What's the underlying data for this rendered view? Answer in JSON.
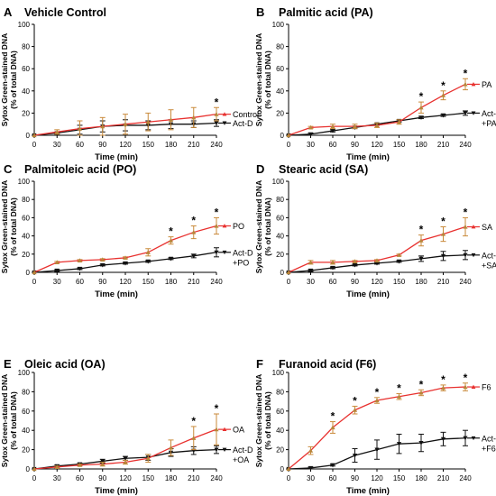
{
  "colors": {
    "fatty_acid_series": "#e8312f",
    "fatty_acid_errorbar": "#c98a3a",
    "actd_series": "#111111"
  },
  "chart_data": [
    {
      "panel": "A",
      "title": "Vehicle Control",
      "type": "line",
      "xlabel": "Time (min)",
      "ylabel": [
        "Sytox Green-stained DNA",
        "(% of total DNA)"
      ],
      "x": [
        0,
        30,
        60,
        90,
        120,
        150,
        180,
        210,
        240
      ],
      "xlim": [
        0,
        240
      ],
      "ylim": [
        0,
        100
      ],
      "yticks": [
        0,
        20,
        40,
        60,
        80,
        100
      ],
      "series": [
        {
          "name": "Control",
          "labelLines": [
            "Control"
          ],
          "color": "red",
          "marker": "triangle-up",
          "values": [
            0,
            3,
            6,
            8,
            10,
            12,
            14,
            16,
            19
          ],
          "errors": [
            0,
            2,
            7,
            8,
            9,
            8,
            9,
            9,
            6
          ]
        },
        {
          "name": "Act-D",
          "labelLines": [
            "Act-D"
          ],
          "color": "black",
          "marker": "triangle-down",
          "values": [
            0,
            2,
            5,
            8,
            9,
            9,
            10,
            10,
            11
          ],
          "errors": [
            0,
            1,
            4,
            5,
            5,
            4,
            4,
            3,
            3
          ]
        }
      ],
      "significance": [
        240
      ]
    },
    {
      "panel": "B",
      "title": "Palmitic acid (PA)",
      "type": "line",
      "xlabel": "Time (min)",
      "ylabel": [
        "Sytox Green-stained DNA",
        "(% of total DNA)"
      ],
      "x": [
        0,
        30,
        60,
        90,
        120,
        150,
        180,
        210,
        240
      ],
      "xlim": [
        0,
        240
      ],
      "ylim": [
        0,
        100
      ],
      "yticks": [
        0,
        20,
        40,
        60,
        80,
        100
      ],
      "series": [
        {
          "name": "PA",
          "labelLines": [
            "PA"
          ],
          "color": "red",
          "marker": "triangle-up",
          "values": [
            0,
            7,
            8,
            8,
            9,
            12,
            25,
            36,
            46
          ],
          "errors": [
            0,
            1,
            2,
            2,
            2,
            2,
            5,
            4,
            5
          ]
        },
        {
          "name": "Act-D +PA",
          "labelLines": [
            "Act-D",
            "+PA"
          ],
          "color": "black",
          "marker": "triangle-down",
          "values": [
            0,
            1,
            4,
            7,
            10,
            13,
            16,
            18,
            20
          ],
          "errors": [
            0,
            1,
            1,
            1,
            1,
            1,
            1,
            1,
            2
          ]
        }
      ],
      "significance": [
        180,
        210,
        240
      ]
    },
    {
      "panel": "C",
      "title": "Palmitoleic acid (PO)",
      "type": "line",
      "xlabel": "Time (min)",
      "ylabel": [
        "Sytox Green-stained DNA",
        "(% of total DNA)"
      ],
      "x": [
        0,
        30,
        60,
        90,
        120,
        150,
        180,
        210,
        240
      ],
      "xlim": [
        0,
        240
      ],
      "ylim": [
        0,
        100
      ],
      "yticks": [
        0,
        20,
        40,
        60,
        80,
        100
      ],
      "series": [
        {
          "name": "PO",
          "labelLines": [
            "PO"
          ],
          "color": "red",
          "marker": "triangle-up",
          "values": [
            0,
            11,
            13,
            14,
            16,
            22,
            35,
            44,
            51
          ],
          "errors": [
            0,
            1,
            1,
            1,
            1,
            4,
            4,
            7,
            9
          ]
        },
        {
          "name": "Act-D +PO",
          "labelLines": [
            "Act-D",
            "+PO"
          ],
          "color": "black",
          "marker": "triangle-down",
          "values": [
            0,
            2,
            4,
            8,
            10,
            12,
            15,
            18,
            22
          ],
          "errors": [
            0,
            1,
            1,
            1,
            1,
            1,
            1,
            2,
            5
          ]
        }
      ],
      "significance": [
        180,
        210,
        240
      ]
    },
    {
      "panel": "D",
      "title": "Stearic acid (SA)",
      "type": "line",
      "xlabel": "Time (min)",
      "ylabel": [
        "Sytox Green-stained DNA",
        "(% of total DNA)"
      ],
      "x": [
        0,
        30,
        60,
        90,
        120,
        150,
        180,
        210,
        240
      ],
      "xlim": [
        0,
        240
      ],
      "ylim": [
        0,
        100
      ],
      "yticks": [
        0,
        20,
        40,
        60,
        80,
        100
      ],
      "series": [
        {
          "name": "SA",
          "labelLines": [
            "SA"
          ],
          "color": "red",
          "marker": "triangle-up",
          "values": [
            0,
            11,
            11,
            12,
            13,
            19,
            35,
            42,
            50
          ],
          "errors": [
            0,
            2,
            2,
            1,
            1,
            1,
            6,
            8,
            10
          ]
        },
        {
          "name": "Act-D +SA",
          "labelLines": [
            "Act-D",
            "+SA"
          ],
          "color": "black",
          "marker": "triangle-down",
          "values": [
            0,
            2,
            5,
            8,
            10,
            12,
            15,
            18,
            19
          ],
          "errors": [
            0,
            1,
            1,
            1,
            1,
            1,
            3,
            5,
            5
          ]
        }
      ],
      "significance": [
        180,
        210,
        240
      ]
    },
    {
      "panel": "E",
      "title": "Oleic acid (OA)",
      "type": "line",
      "xlabel": "Time (min)",
      "ylabel": [
        "Sytox Green-stained DNA",
        "(% of total DNA)"
      ],
      "x": [
        0,
        30,
        60,
        90,
        120,
        150,
        180,
        210,
        240
      ],
      "xlim": [
        0,
        240
      ],
      "ylim": [
        0,
        100
      ],
      "yticks": [
        0,
        20,
        40,
        60,
        80,
        100
      ],
      "series": [
        {
          "name": "OA",
          "labelLines": [
            "OA"
          ],
          "color": "red",
          "marker": "triangle-up",
          "values": [
            0,
            2,
            4,
            5,
            7,
            11,
            22,
            32,
            41
          ],
          "errors": [
            0,
            1,
            1,
            2,
            2,
            4,
            8,
            12,
            16
          ]
        },
        {
          "name": "Act-D +OA",
          "labelLines": [
            "Act-D",
            "+OA"
          ],
          "color": "black",
          "marker": "triangle-down",
          "values": [
            0,
            3,
            5,
            8,
            11,
            12,
            17,
            19,
            20
          ],
          "errors": [
            0,
            1,
            1,
            2,
            2,
            3,
            4,
            4,
            4
          ]
        }
      ],
      "significance": [
        210,
        240
      ]
    },
    {
      "panel": "F",
      "title": "Furanoid acid (F6)",
      "type": "line",
      "xlabel": "Time (min)",
      "ylabel": [
        "Sytox Green-stained DNA",
        "(% of total DNA)"
      ],
      "x": [
        0,
        30,
        60,
        90,
        120,
        150,
        180,
        210,
        240
      ],
      "xlim": [
        0,
        240
      ],
      "ylim": [
        0,
        100
      ],
      "yticks": [
        0,
        20,
        40,
        60,
        80,
        100
      ],
      "series": [
        {
          "name": "F6",
          "labelLines": [
            "F6"
          ],
          "color": "red",
          "marker": "triangle-up",
          "values": [
            0,
            19,
            43,
            61,
            71,
            75,
            79,
            84,
            85
          ],
          "errors": [
            0,
            4,
            6,
            4,
            3,
            3,
            3,
            3,
            4
          ]
        },
        {
          "name": "Act-D +F6",
          "labelLines": [
            "Act-D",
            "+F6"
          ],
          "color": "black",
          "marker": "triangle-down",
          "values": [
            0,
            1,
            4,
            14,
            20,
            26,
            27,
            31,
            32
          ],
          "errors": [
            0,
            1,
            1,
            7,
            10,
            10,
            9,
            7,
            8
          ]
        }
      ],
      "significance": [
        60,
        90,
        120,
        150,
        180,
        210,
        240
      ]
    }
  ]
}
